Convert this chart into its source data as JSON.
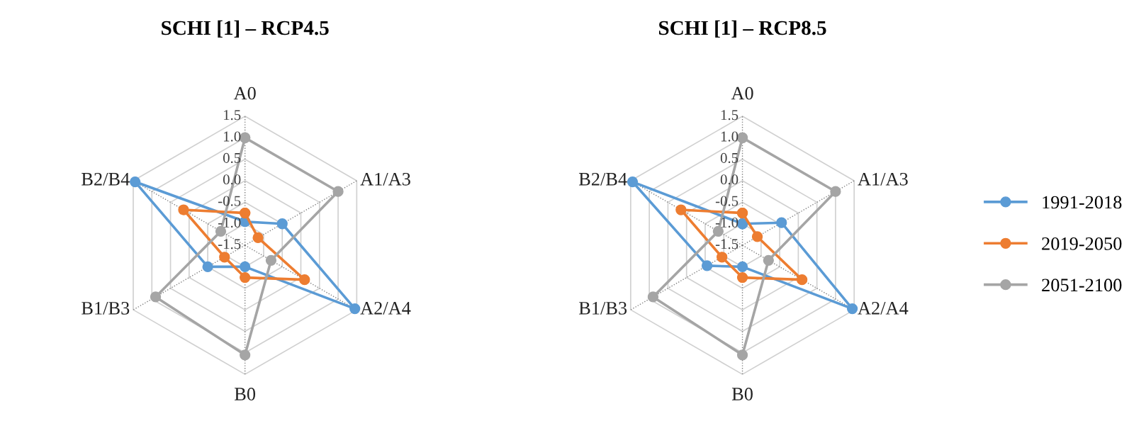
{
  "chart_data": [
    {
      "type": "radar",
      "title": "SCHI [1] – RCP4.5",
      "categories": [
        "A0",
        "A1/A3",
        "A2/A4",
        "B0",
        "B1/B3",
        "B2/B4"
      ],
      "ylim": [
        -1.5,
        1.5
      ],
      "yticks": [
        -1.5,
        {
          "value": -1,
          "label": "-1.0"
        },
        -0.5,
        {
          "value": 0,
          "label": "0.0"
        },
        0.5,
        {
          "value": 1,
          "label": "1.0"
        },
        1.5
      ],
      "grid": true,
      "marker": "circle",
      "series": [
        {
          "color": "#5b9bd5",
          "values": [
            -0.95,
            -0.5,
            1.45,
            -1.0,
            -0.5,
            1.45
          ]
        },
        {
          "color": "#ed7d31",
          "values": [
            -0.75,
            -1.15,
            0.1,
            -0.75,
            -0.95,
            0.15
          ]
        },
        {
          "color": "#a5a5a5",
          "values": [
            1.0,
            1.0,
            -0.8,
            1.05,
            0.9,
            -0.85
          ]
        }
      ]
    },
    {
      "type": "radar",
      "title": "SCHI [1] – RCP8.5",
      "categories": [
        "A0",
        "A1/A3",
        "A2/A4",
        "B0",
        "B1/B3",
        "B2/B4"
      ],
      "ylim": [
        -1.5,
        1.5
      ],
      "yticks": [
        -1.5,
        {
          "value": -1,
          "label": "-1.0"
        },
        -0.5,
        {
          "value": 0,
          "label": "0.0"
        },
        0.5,
        {
          "value": 1,
          "label": "1.0"
        },
        1.5
      ],
      "grid": true,
      "marker": "circle",
      "legend": "right",
      "series": [
        {
          "name": "1991-2018",
          "color": "#5b9bd5",
          "values": [
            -1.0,
            -0.45,
            1.45,
            -1.0,
            -0.55,
            1.45
          ]
        },
        {
          "name": "2019-2050",
          "color": "#ed7d31",
          "values": [
            -0.75,
            -1.1,
            0.1,
            -0.75,
            -0.95,
            0.15
          ]
        },
        {
          "name": "2051-2100",
          "color": "#a5a5a5",
          "values": [
            1.0,
            1.0,
            -0.8,
            1.05,
            0.9,
            -0.85
          ]
        }
      ]
    }
  ]
}
